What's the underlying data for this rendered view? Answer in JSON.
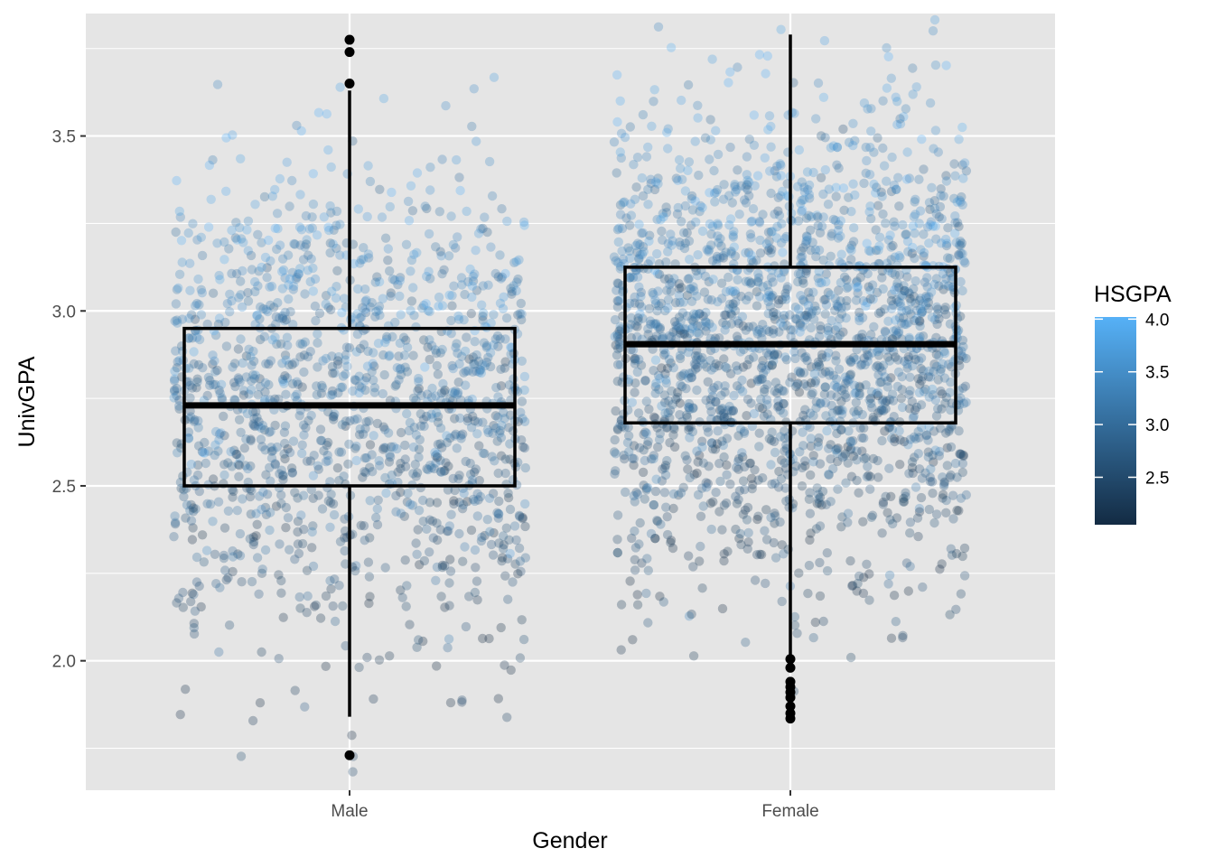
{
  "chart_data": {
    "type": "boxplot",
    "overlay": "jittered scatter points colored by HSGPA (alpha ~0.3)",
    "title": "",
    "xlabel": "Gender",
    "ylabel": "UnivGPA",
    "categories": [
      "Male",
      "Female"
    ],
    "ylim": [
      1.63,
      3.85
    ],
    "y_ticks": [
      2.0,
      2.5,
      3.0,
      3.5
    ],
    "y_tick_labels": [
      "2.0",
      "2.5",
      "3.0",
      "3.5"
    ],
    "grid": true,
    "boxes": [
      {
        "category": "Male",
        "lower_whisker": 1.84,
        "q1": 2.5,
        "median": 2.73,
        "q3": 2.95,
        "upper_whisker": 3.63,
        "outliers": [
          3.65,
          3.74,
          3.775,
          1.73
        ],
        "jitter_n": 1400
      },
      {
        "category": "Female",
        "lower_whisker": 2.01,
        "q1": 2.68,
        "median": 2.905,
        "q3": 3.125,
        "upper_whisker": 3.79,
        "outliers": [
          2.005,
          1.98,
          1.94,
          1.925,
          1.91,
          1.895,
          1.87,
          1.85,
          1.835
        ],
        "jitter_n": 2100
      }
    ],
    "color_scale": {
      "variable": "HSGPA",
      "low_value": 2.05,
      "high_value": 4.02,
      "low_color": "#132b43",
      "high_color": "#56b1f7",
      "legend_ticks": [
        2.5,
        3.0,
        3.5,
        4.0
      ],
      "legend_tick_labels": [
        "2.5",
        "3.0",
        "3.5",
        "4.0"
      ],
      "legend_position": "right"
    },
    "panel_background": "#e5e5e5",
    "grid_color": "#ffffff"
  }
}
